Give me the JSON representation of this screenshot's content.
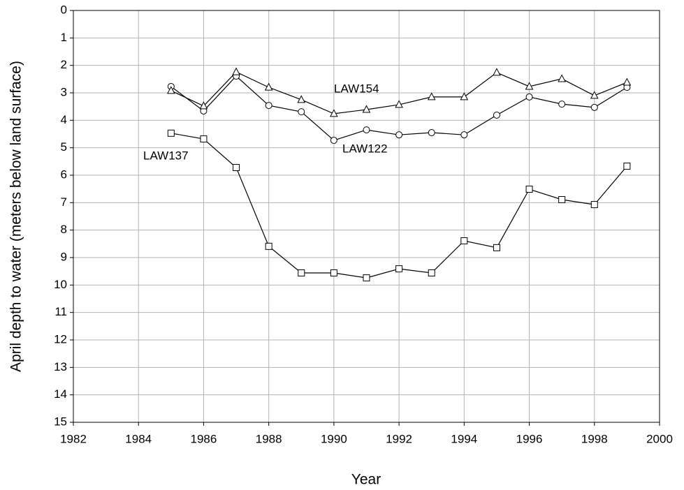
{
  "chart_data": {
    "type": "line",
    "x_label": "Year",
    "y_label": "April depth to water (meters below land surface)",
    "x": [
      1985,
      1986,
      1987,
      1988,
      1989,
      1990,
      1991,
      1992,
      1993,
      1994,
      1995,
      1996,
      1997,
      1998,
      1999
    ],
    "series": [
      {
        "name": "LAW122",
        "color": "#000000",
        "marker": "circle",
        "values": [
          2.77,
          3.66,
          2.39,
          3.46,
          3.69,
          4.73,
          4.35,
          4.53,
          4.45,
          4.53,
          3.81,
          3.15,
          3.41,
          3.53,
          2.8
        ]
      },
      {
        "name": "LAW154",
        "color": "#000000",
        "marker": "triangle",
        "values": [
          2.92,
          3.48,
          2.24,
          2.8,
          3.25,
          3.76,
          3.61,
          3.43,
          3.15,
          3.15,
          2.26,
          2.77,
          2.49,
          3.1,
          2.62
        ]
      },
      {
        "name": "LAW137",
        "color": "#000000",
        "marker": "square",
        "values": [
          4.47,
          4.68,
          5.72,
          8.59,
          9.56,
          9.56,
          9.74,
          9.41,
          9.56,
          8.39,
          8.64,
          6.51,
          6.89,
          7.07,
          5.67
        ]
      }
    ],
    "xlim": [
      1982,
      2000
    ],
    "xticks": [
      1982,
      1984,
      1986,
      1988,
      1990,
      1992,
      1994,
      1996,
      1998,
      2000
    ],
    "ylim": [
      0,
      15
    ],
    "yticks": [
      0,
      1,
      2,
      3,
      4,
      5,
      6,
      7,
      8,
      9,
      10,
      11,
      12,
      13,
      14,
      15
    ],
    "y_inverted": true,
    "grid": true,
    "grid_color": "#b3b3b3"
  }
}
